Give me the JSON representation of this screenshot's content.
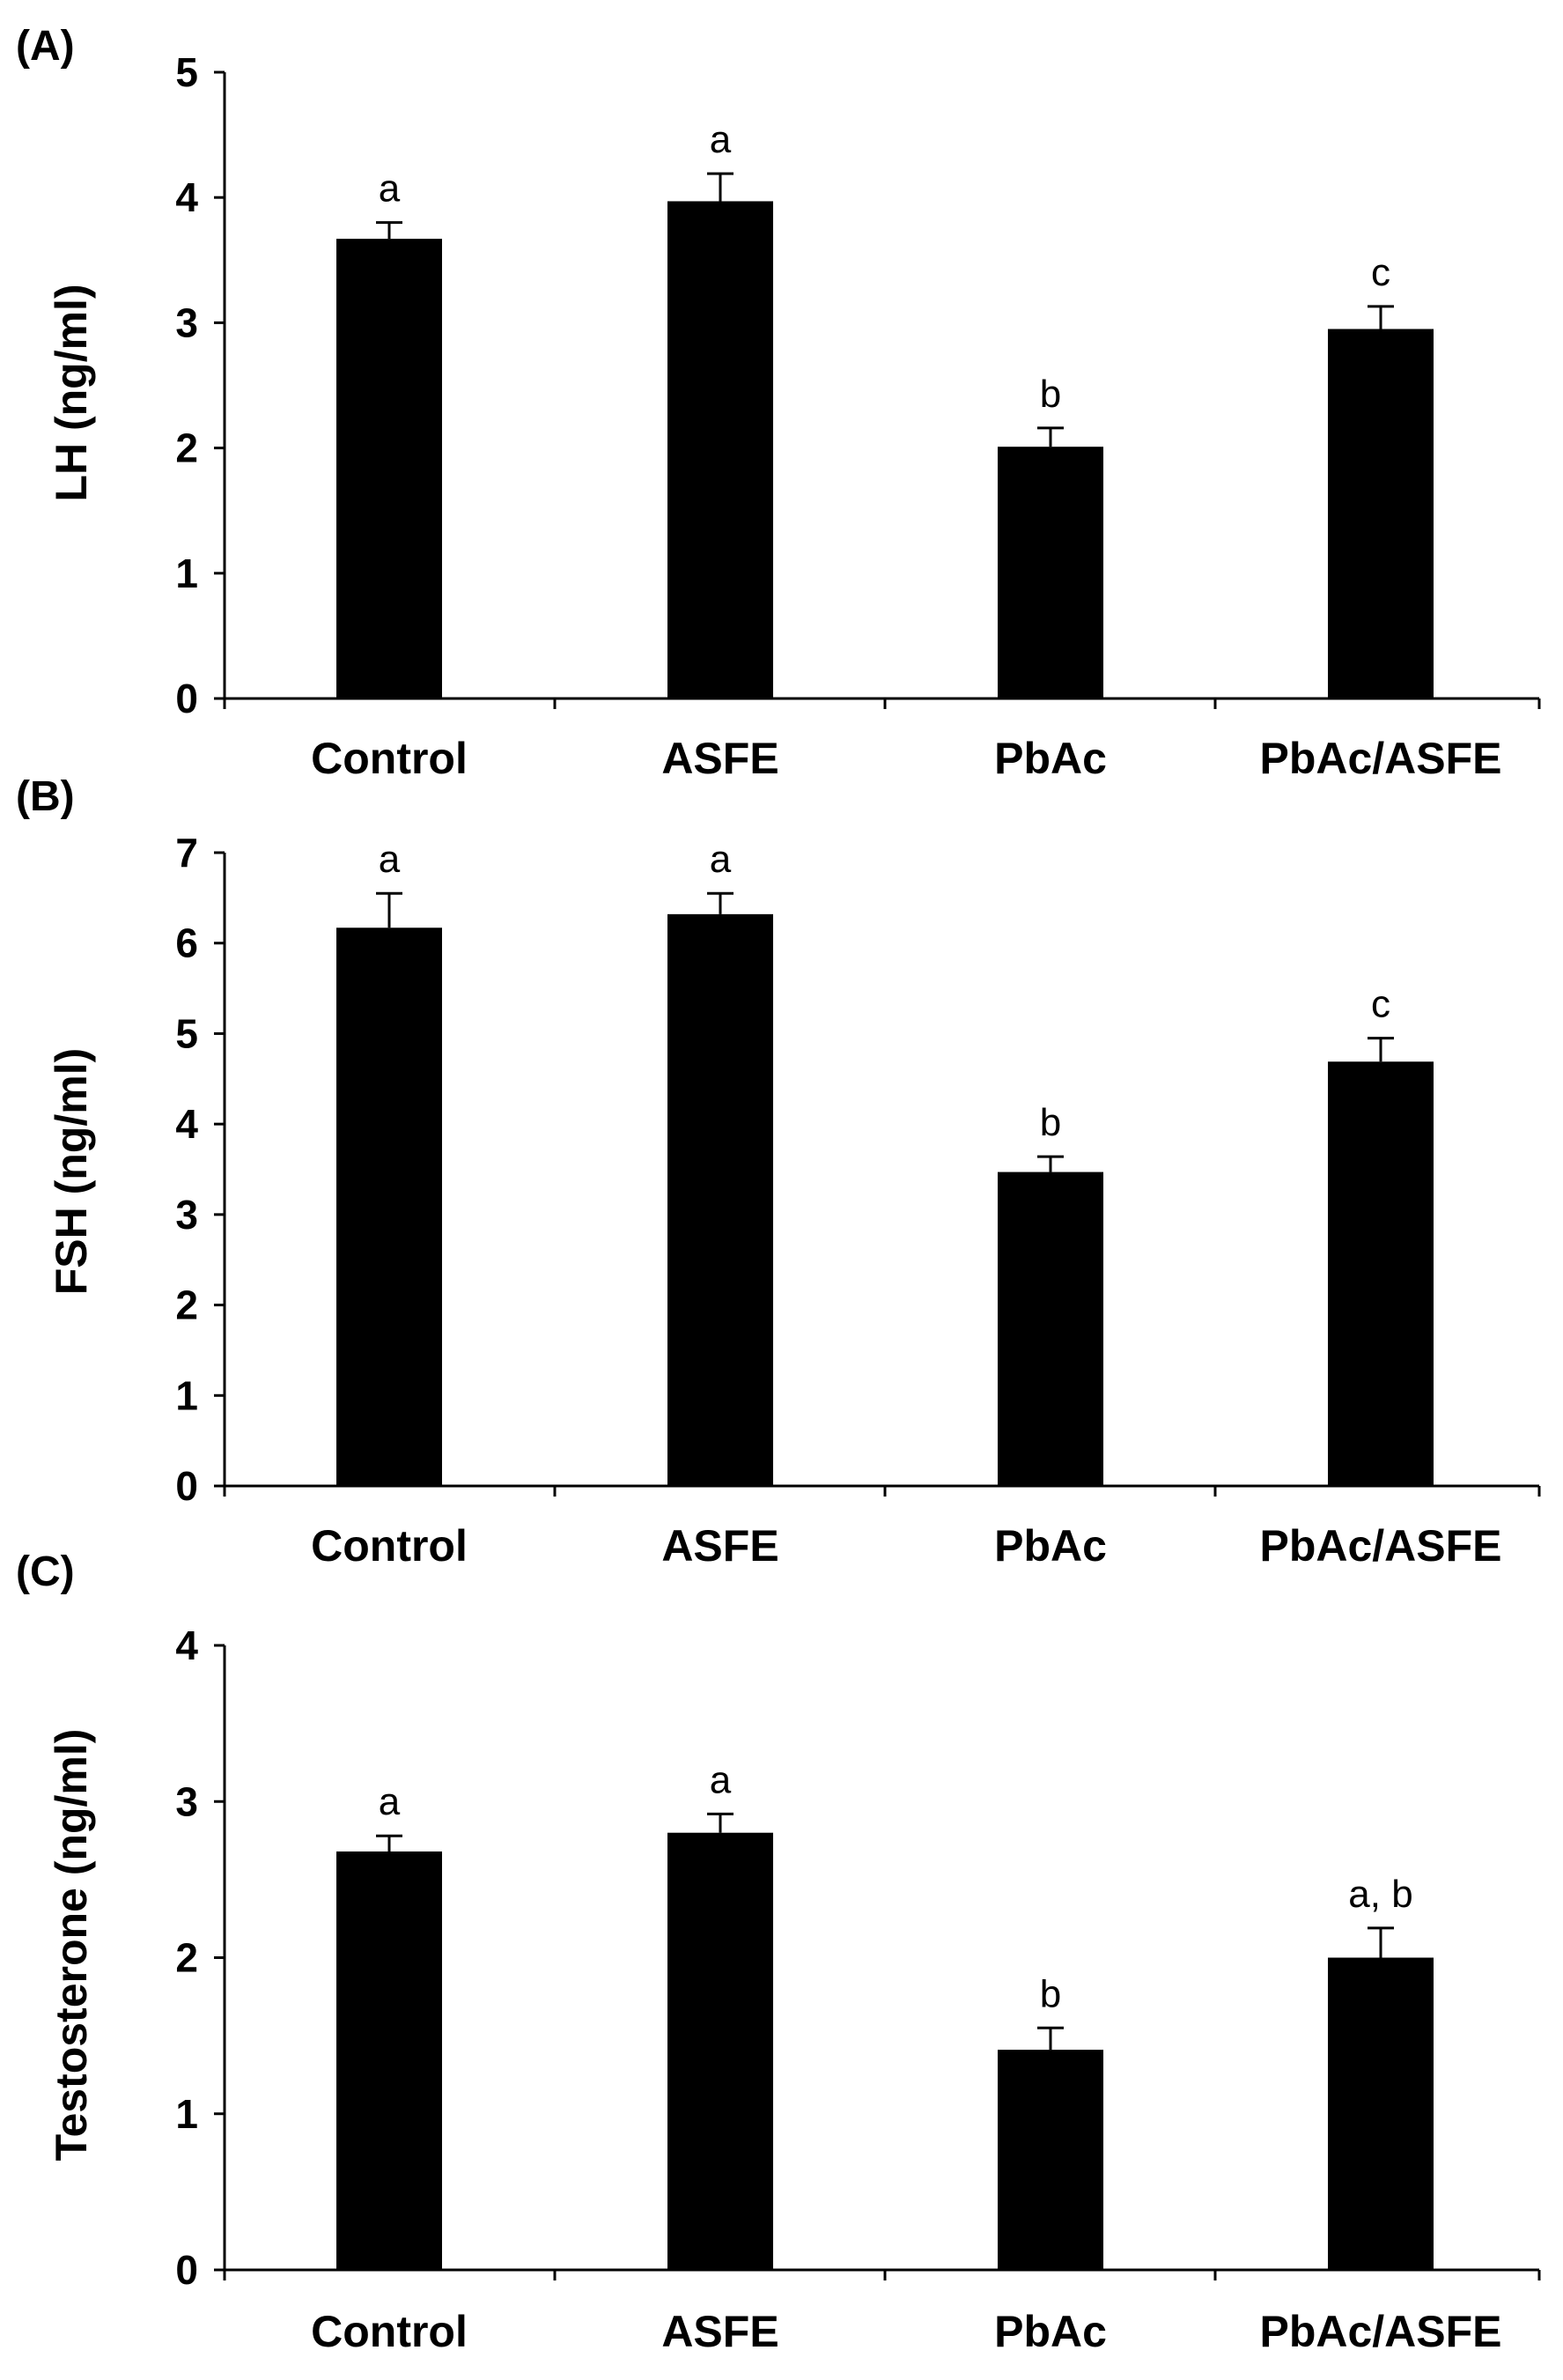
{
  "chart_data": [
    {
      "type": "bar",
      "panel": "(A)",
      "categories": [
        "Control",
        "ASFE",
        "PbAc",
        "PbAc/ASFE"
      ],
      "values": [
        3.67,
        3.97,
        2.01,
        2.95
      ],
      "errors": [
        0.13,
        0.22,
        0.15,
        0.18
      ],
      "significance": [
        "a",
        "a",
        "b",
        "c"
      ],
      "ylabel": "LH (ng/ml)",
      "xlabel": "",
      "ylim": [
        0,
        5
      ],
      "yticks": [
        "0",
        "1",
        "2",
        "3",
        "4",
        "5"
      ],
      "grid": false,
      "legend": "none",
      "bar_color": "#000000"
    },
    {
      "type": "bar",
      "panel": "(B)",
      "categories": [
        "Control",
        "ASFE",
        "PbAc",
        "PbAc/ASFE"
      ],
      "values": [
        6.17,
        6.32,
        3.47,
        4.69
      ],
      "errors": [
        0.38,
        0.23,
        0.17,
        0.26
      ],
      "significance": [
        "a",
        "a",
        "b",
        "c"
      ],
      "ylabel": "FSH (ng/ml)",
      "xlabel": "",
      "ylim": [
        0,
        7
      ],
      "yticks": [
        "0",
        "1",
        "2",
        "3",
        "4",
        "5",
        "6",
        "7"
      ],
      "grid": false,
      "legend": "none",
      "bar_color": "#000000"
    },
    {
      "type": "bar",
      "panel": "(C)",
      "categories": [
        "Control",
        "ASFE",
        "PbAc",
        "PbAc/ASFE"
      ],
      "values": [
        2.68,
        2.8,
        1.41,
        2.0
      ],
      "errors": [
        0.1,
        0.12,
        0.14,
        0.19
      ],
      "significance": [
        "a",
        "a",
        "b",
        "a, b"
      ],
      "ylabel": "Testosterone (ng/ml)",
      "xlabel": "",
      "ylim": [
        0,
        4
      ],
      "yticks": [
        "0",
        "1",
        "2",
        "3",
        "4"
      ],
      "grid": false,
      "legend": "none",
      "bar_color": "#000000"
    }
  ]
}
